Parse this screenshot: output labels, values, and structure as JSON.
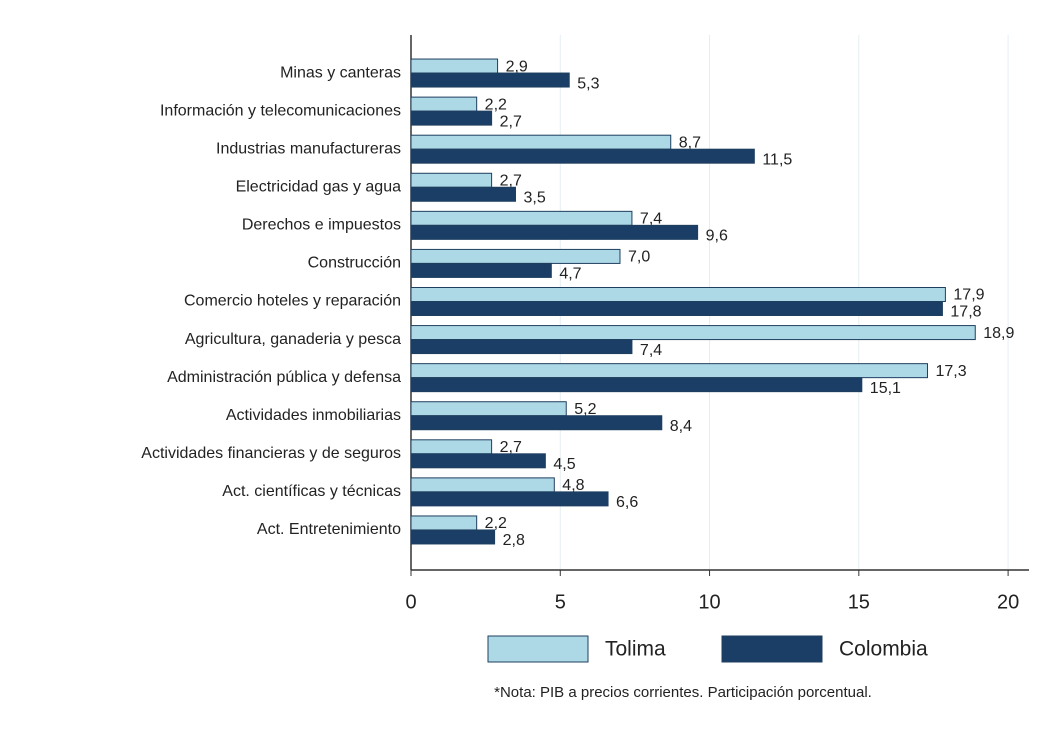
{
  "chart_data": {
    "type": "bar",
    "orientation": "horizontal",
    "categories": [
      "Minas y canteras",
      "Información y telecomunicaciones",
      "Industrias manufactureras",
      "Electricidad gas y agua",
      "Derechos e impuestos",
      "Construcción",
      "Comercio hoteles y reparación",
      "Agricultura, ganaderia y pesca",
      "Administración pública y defensa",
      "Actividades inmobiliarias",
      "Actividades financieras y de seguros",
      "Act. científicas y técnicas",
      "Act. Entretenimiento"
    ],
    "series": [
      {
        "name": "Tolima",
        "color": "#add8e6",
        "values": [
          2.9,
          2.2,
          8.7,
          2.7,
          7.4,
          7.0,
          17.9,
          18.9,
          17.3,
          5.2,
          2.7,
          4.8,
          2.2
        ],
        "value_labels": [
          "2,9",
          "2,2",
          "8,7",
          "2,7",
          "7,4",
          "7,0",
          "17,9",
          "18,9",
          "17,3",
          "5,2",
          "2,7",
          "4,8",
          "2,2"
        ]
      },
      {
        "name": "Colombia",
        "color": "#1a3e66",
        "values": [
          5.3,
          2.7,
          11.5,
          3.5,
          9.6,
          4.7,
          17.8,
          7.4,
          15.1,
          8.4,
          4.5,
          6.6,
          2.8
        ],
        "value_labels": [
          "5,3",
          "2,7",
          "11,5",
          "3,5",
          "9,6",
          "4,7",
          "17,8",
          "7,4",
          "15,1",
          "8,4",
          "4,5",
          "6,6",
          "2,8"
        ]
      }
    ],
    "xlim": [
      0,
      20.7
    ],
    "xticks": [
      0,
      5,
      10,
      15,
      20
    ],
    "grid": true,
    "legend": "bottom",
    "note": "*Nota: PIB a precios corrientes. Participación porcentual."
  }
}
